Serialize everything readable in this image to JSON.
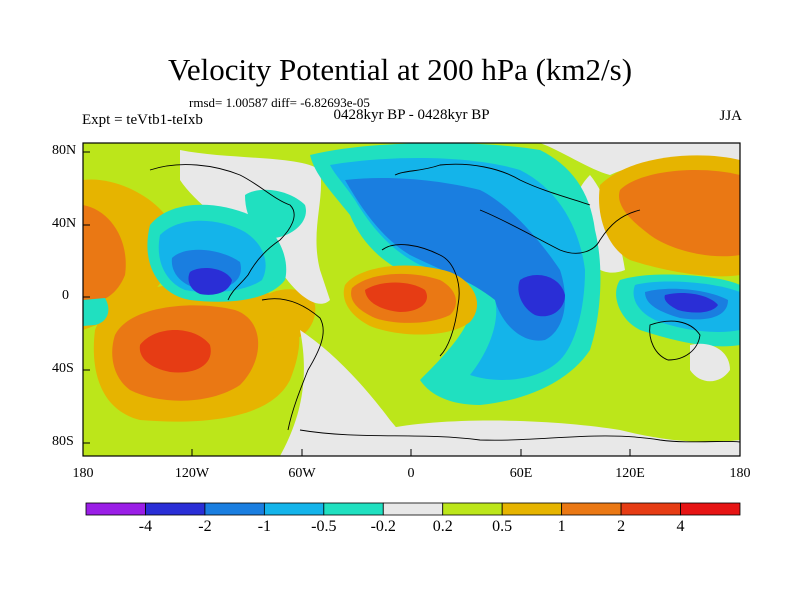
{
  "title": "Velocity Potential at 200 hPa (km2/s)",
  "stats": "rmsd= 1.00587  diff= -6.82693e-05",
  "experiment": "Expt = teVtb1-teIxb",
  "period": "0428kyr BP - 0428kyr BP",
  "season": "JJA",
  "map": {
    "projection": "cylindrical equidistant",
    "lon_range": [
      -180,
      180
    ],
    "lat_range": [
      -90,
      90
    ],
    "y_ticks": [
      "80N",
      "40N",
      "0",
      "40S",
      "80S"
    ],
    "x_ticks": [
      "180",
      "120W",
      "60W",
      "0",
      "60E",
      "120E",
      "180"
    ]
  },
  "colorbar": {
    "labels": [
      "-4",
      "-2",
      "-1",
      "-0.5",
      "-0.2",
      "0.2",
      "0.5",
      "1",
      "2",
      "4"
    ],
    "colors": [
      "#9a1ee6",
      "#2a2ed6",
      "#1a7ee0",
      "#14b4ea",
      "#20e0c0",
      "#e8e8e8",
      "#bce61a",
      "#e6b400",
      "#ea7814",
      "#e63c14",
      "#e61414"
    ]
  }
}
